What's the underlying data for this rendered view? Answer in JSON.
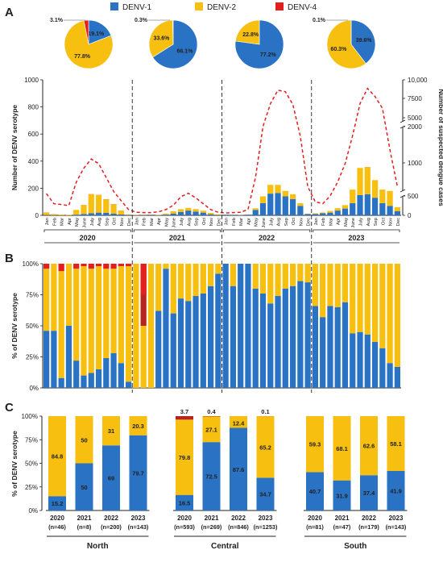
{
  "colors": {
    "denv1": "#2a72c4",
    "denv2": "#f7bf0f",
    "denv4": "#e41d1d",
    "line": "#e41d1d",
    "inner4": "#b5241e"
  },
  "legend": [
    "DENV-1",
    "DENV-2",
    "DENV-4"
  ],
  "panel_labels": [
    "A",
    "B",
    "C"
  ],
  "chart_data": [
    {
      "type": "pie",
      "panel": "A",
      "pies": [
        {
          "year": "2020",
          "slices": [
            {
              "name": "DENV-1",
              "value": 19.1
            },
            {
              "name": "DENV-2",
              "value": 77.8
            },
            {
              "name": "DENV-4",
              "value": 3.1
            }
          ]
        },
        {
          "year": "2021",
          "slices": [
            {
              "name": "DENV-1",
              "value": 66.1
            },
            {
              "name": "DENV-2",
              "value": 33.6
            },
            {
              "name": "DENV-4",
              "value": 0.3
            }
          ]
        },
        {
          "year": "2022",
          "slices": [
            {
              "name": "DENV-1",
              "value": 77.2
            },
            {
              "name": "DENV-2",
              "value": 22.8
            },
            {
              "name": "DENV-4",
              "value": 0
            }
          ]
        },
        {
          "year": "2023",
          "slices": [
            {
              "name": "DENV-1",
              "value": 39.6
            },
            {
              "name": "DENV-2",
              "value": 60.3
            },
            {
              "name": "DENV-4",
              "value": 0.1
            }
          ]
        }
      ],
      "labels": [
        [
          "19.1%",
          "77.8%",
          "3.1%"
        ],
        [
          "66.1%",
          "33.6%",
          "0.3%"
        ],
        [
          "77.2%",
          "22.8%",
          ""
        ],
        [
          "39.6%",
          "60.3%",
          "0.1%"
        ]
      ]
    },
    {
      "type": "bar",
      "panel": "A",
      "stacked": true,
      "years": [
        "2020",
        "2021",
        "2022",
        "2023"
      ],
      "months": [
        "Jan",
        "Feb",
        "Mar",
        "Apr",
        "May",
        "June",
        "July",
        "Aug",
        "Sep",
        "Oct",
        "Nov",
        "Dec"
      ],
      "ylabel": "Number of DENV serotype",
      "y2label": "Number of suspected dengue cases",
      "yticks": [
        "0",
        "200",
        "400",
        "600",
        "800",
        "1000"
      ],
      "y2ticks": [
        "0",
        "500",
        "1000",
        "2000",
        "5000",
        "7500",
        "10,000"
      ],
      "ylim": [
        0,
        1000
      ],
      "series": [
        {
          "name": "DENV-1",
          "values": [
            2,
            1,
            0,
            0,
            5,
            10,
            15,
            20,
            18,
            12,
            6,
            2,
            1,
            0,
            0,
            0,
            5,
            12,
            25,
            35,
            28,
            20,
            8,
            2,
            5,
            1,
            2,
            5,
            40,
            90,
            160,
            165,
            140,
            120,
            70,
            10,
            10,
            15,
            20,
            35,
            50,
            90,
            150,
            155,
            130,
            90,
            70,
            30
          ]
        },
        {
          "name": "DENV-2",
          "values": [
            18,
            8,
            6,
            4,
            35,
            65,
            140,
            130,
            100,
            70,
            30,
            5,
            2,
            1,
            0,
            2,
            8,
            18,
            20,
            20,
            18,
            14,
            10,
            5,
            1,
            0,
            1,
            2,
            12,
            50,
            65,
            60,
            40,
            35,
            20,
            2,
            5,
            6,
            12,
            18,
            25,
            100,
            200,
            200,
            130,
            100,
            110,
            30
          ]
        },
        {
          "name": "DENV-4",
          "values": [
            1,
            0,
            0,
            0,
            0,
            1,
            1,
            1,
            1,
            1,
            0,
            0,
            0,
            1,
            0,
            0,
            0,
            0,
            0,
            0,
            0,
            0,
            0,
            0,
            0,
            0,
            0,
            0,
            0,
            0,
            0,
            0,
            0,
            0,
            0,
            0,
            0,
            0,
            0,
            0,
            0,
            0,
            0,
            1,
            0,
            0,
            0,
            0
          ]
        },
        {
          "name": "Suspected dengue cases",
          "values": [
            550,
            300,
            280,
            250,
            800,
            1100,
            1300,
            1200,
            900,
            600,
            380,
            150,
            80,
            70,
            70,
            90,
            150,
            260,
            480,
            560,
            450,
            300,
            150,
            80,
            60,
            70,
            80,
            150,
            900,
            2000,
            5000,
            7800,
            7500,
            4800,
            1800,
            700,
            350,
            300,
            500,
            800,
            1200,
            1800,
            5000,
            8200,
            6500,
            4000,
            1500,
            700
          ]
        }
      ]
    },
    {
      "type": "bar",
      "panel": "B",
      "stacked": true,
      "percent": true,
      "ylabel": "% of DENV serotype",
      "yticks": [
        "0%",
        "25%",
        "50%",
        "75%",
        "100%"
      ],
      "ylim": [
        0,
        100
      ],
      "series": [
        {
          "name": "DENV-1",
          "values": [
            46,
            46,
            8,
            50,
            22,
            10,
            12,
            15,
            24,
            28,
            20,
            5,
            0,
            0,
            0,
            62,
            96,
            60,
            72,
            70,
            74,
            76,
            82,
            92,
            100,
            82,
            100,
            100,
            80,
            76,
            68,
            74,
            80,
            82,
            86,
            85,
            66,
            57,
            66,
            65,
            69,
            44,
            45,
            43,
            37,
            32,
            20,
            17
          ]
        },
        {
          "name": "DENV-2",
          "values": [
            50,
            54,
            86,
            50,
            74,
            88,
            84,
            83,
            72,
            68,
            78,
            93,
            100,
            50,
            100,
            38,
            4,
            40,
            28,
            30,
            26,
            24,
            18,
            8,
            0,
            18,
            0,
            0,
            20,
            24,
            32,
            26,
            20,
            18,
            14,
            15,
            34,
            43,
            34,
            35,
            31,
            56,
            55,
            57,
            63,
            68,
            80,
            83
          ]
        },
        {
          "name": "DENV-4",
          "values": [
            4,
            0,
            6,
            0,
            4,
            2,
            4,
            2,
            4,
            4,
            2,
            2,
            0,
            50,
            0,
            0,
            0,
            0,
            0,
            0,
            0,
            0,
            0,
            0,
            0,
            0,
            0,
            0,
            0,
            0,
            0,
            0,
            0,
            0,
            0,
            0,
            0,
            0,
            0,
            0,
            0,
            0,
            0,
            0,
            0,
            0,
            0,
            0
          ]
        }
      ]
    },
    {
      "type": "bar",
      "panel": "C",
      "stacked": true,
      "percent": true,
      "ylabel": "% of DENV serotype",
      "yticks": [
        "0%",
        "25%",
        "50%",
        "75%",
        "100%"
      ],
      "ylim": [
        0,
        100
      ],
      "groups": [
        {
          "region": "North",
          "bars": [
            {
              "year": "2020",
              "n": "(n=46)",
              "denv1": 15.2,
              "denv2": 84.8,
              "denv4": 0,
              "labels": [
                "15.2",
                "84.8",
                ""
              ]
            },
            {
              "year": "2021",
              "n": "(n=8)",
              "denv1": 50,
              "denv2": 50,
              "denv4": 0,
              "labels": [
                "50",
                "50",
                ""
              ]
            },
            {
              "year": "2022",
              "n": "(n=200)",
              "denv1": 69,
              "denv2": 31,
              "denv4": 0,
              "labels": [
                "69",
                "31",
                ""
              ]
            },
            {
              "year": "2023",
              "n": "(n=143)",
              "denv1": 79.7,
              "denv2": 20.3,
              "denv4": 0,
              "labels": [
                "79.7",
                "20.3",
                ""
              ]
            }
          ]
        },
        {
          "region": "Central",
          "bars": [
            {
              "year": "2020",
              "n": "(n=593)",
              "denv1": 16.5,
              "denv2": 79.8,
              "denv4": 3.7,
              "labels": [
                "16.5",
                "79.8",
                "3.7"
              ]
            },
            {
              "year": "2021",
              "n": "(n=269)",
              "denv1": 72.5,
              "denv2": 27.1,
              "denv4": 0.4,
              "labels": [
                "72.5",
                "27.1",
                "0.4"
              ]
            },
            {
              "year": "2022",
              "n": "(n=846)",
              "denv1": 87.6,
              "denv2": 12.4,
              "denv4": 0,
              "labels": [
                "87.6",
                "12.4",
                ""
              ]
            },
            {
              "year": "2023",
              "n": "(n=1253)",
              "denv1": 34.7,
              "denv2": 65.2,
              "denv4": 0.1,
              "labels": [
                "34.7",
                "65.2",
                "0.1"
              ]
            }
          ]
        },
        {
          "region": "South",
          "bars": [
            {
              "year": "2020",
              "n": "(n=81)",
              "denv1": 40.7,
              "denv2": 59.3,
              "denv4": 0,
              "labels": [
                "40.7",
                "59.3",
                ""
              ]
            },
            {
              "year": "2021",
              "n": "(n=47)",
              "denv1": 31.9,
              "denv2": 68.1,
              "denv4": 0,
              "labels": [
                "31.9",
                "68.1",
                ""
              ]
            },
            {
              "year": "2022",
              "n": "(n=179)",
              "denv1": 37.4,
              "denv2": 62.6,
              "denv4": 0,
              "labels": [
                "37.4",
                "62.6",
                ""
              ]
            },
            {
              "year": "2023",
              "n": "(n=143)",
              "denv1": 41.9,
              "denv2": 58.1,
              "denv4": 0,
              "labels": [
                "41.9",
                "58.1",
                ""
              ]
            }
          ]
        }
      ]
    }
  ]
}
